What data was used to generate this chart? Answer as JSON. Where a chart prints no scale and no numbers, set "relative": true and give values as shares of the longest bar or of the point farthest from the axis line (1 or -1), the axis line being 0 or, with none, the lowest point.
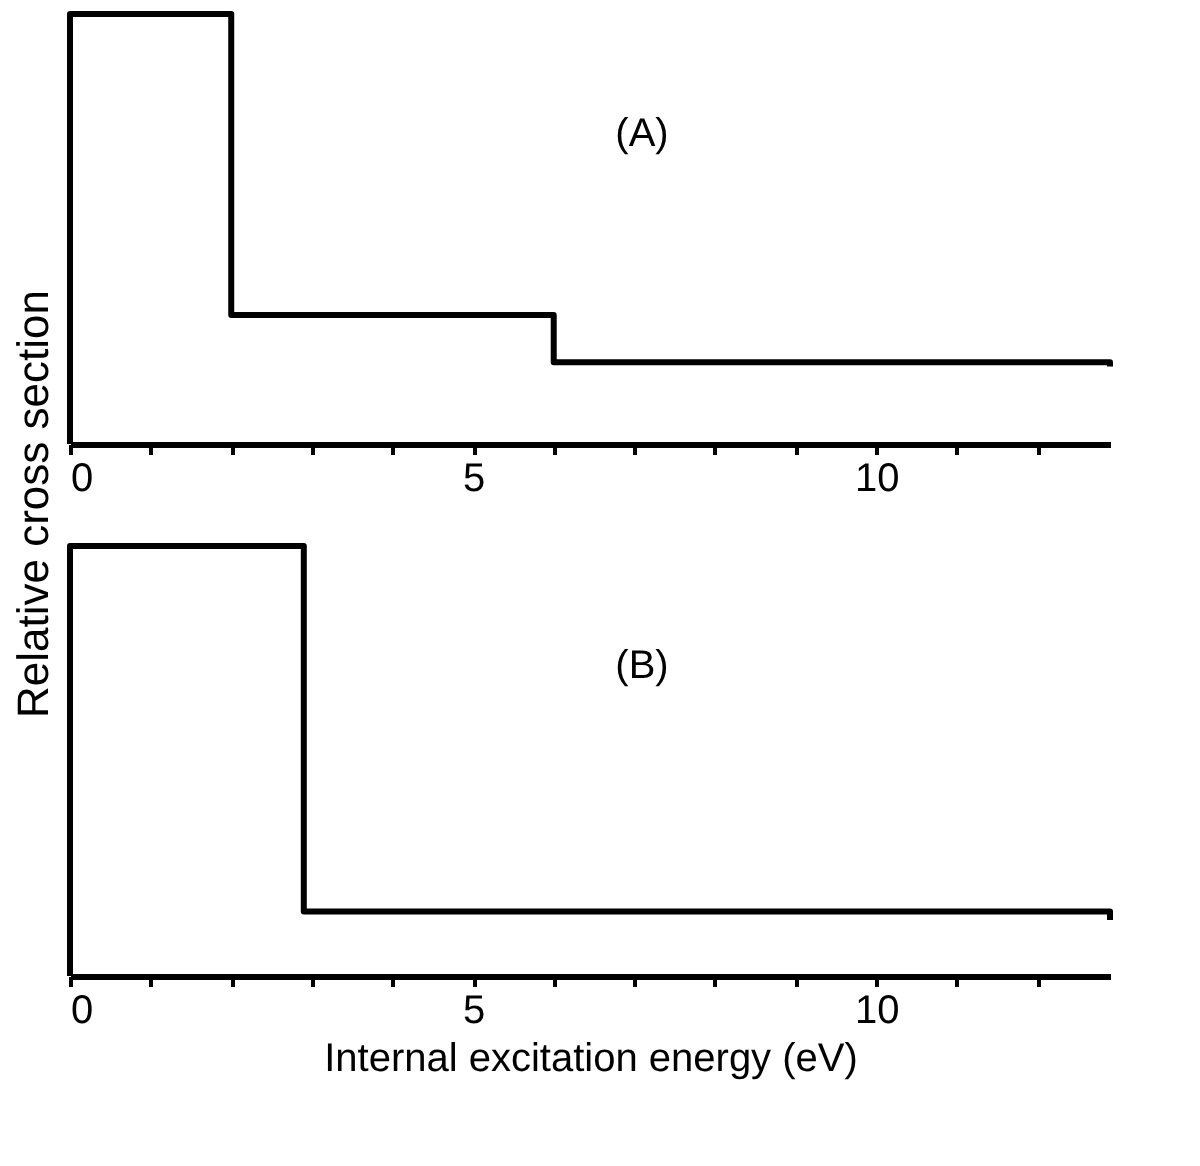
{
  "chart_data": [
    {
      "type": "step",
      "relative": true,
      "ylabel": "Relative cross section",
      "annotations": [
        "(A)"
      ],
      "color": "#000000",
      "x": [
        0,
        0,
        2,
        6,
        12.9
      ],
      "values": [
        0,
        1,
        0.3,
        0.19,
        0.18
      ],
      "xlim": [
        0,
        12.9
      ],
      "xticks": [
        0,
        {
          "value": 1,
          "label": null
        },
        {
          "value": 2,
          "label": null
        },
        {
          "value": 3,
          "label": null
        },
        {
          "value": 4,
          "label": null
        },
        5,
        {
          "value": 6,
          "label": null
        },
        {
          "value": 7,
          "label": null
        },
        {
          "value": 8,
          "label": null
        },
        {
          "value": 9,
          "label": null
        },
        10,
        {
          "value": 11,
          "label": null
        },
        {
          "value": 12,
          "label": null
        }
      ],
      "grid": false
    },
    {
      "type": "step",
      "relative": true,
      "xlabel": "Internal excitation energy (eV)",
      "annotations": [
        "(B)"
      ],
      "color": "#000000",
      "x": [
        0,
        0,
        2.9,
        12.9
      ],
      "values": [
        0,
        1,
        0.15,
        0.13
      ],
      "xlim": [
        0,
        12.9
      ],
      "xticks": [
        0,
        {
          "value": 1,
          "label": null
        },
        {
          "value": 2,
          "label": null
        },
        {
          "value": 3,
          "label": null
        },
        {
          "value": 4,
          "label": null
        },
        5,
        {
          "value": 6,
          "label": null
        },
        {
          "value": 7,
          "label": null
        },
        {
          "value": 8,
          "label": null
        },
        {
          "value": 9,
          "label": null
        },
        10,
        {
          "value": 11,
          "label": null
        },
        {
          "value": 12,
          "label": null
        }
      ],
      "grid": false
    }
  ]
}
